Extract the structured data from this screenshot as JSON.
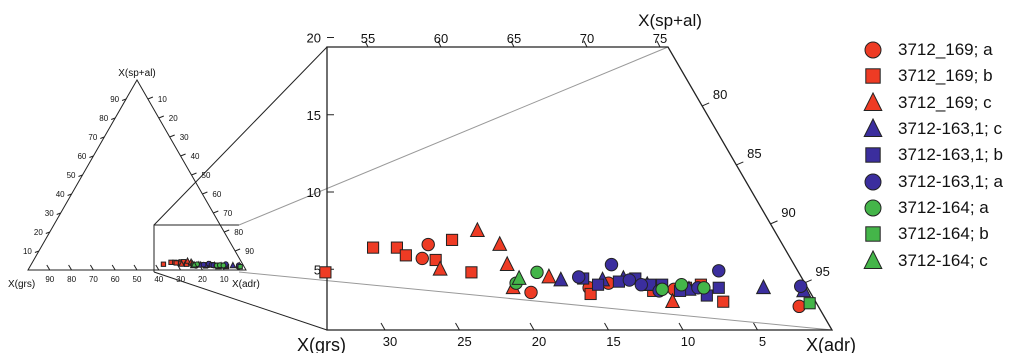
{
  "chart_data": {
    "type": "scatter",
    "subtype": "ternary-with-zoom-inset",
    "apices": {
      "top": "X(sp+al)",
      "left": "X(grs)",
      "right": "X(adr)"
    },
    "small_ternary": {
      "left_ticks": [
        "10",
        "20",
        "30",
        "40",
        "50",
        "60",
        "70",
        "80",
        "90"
      ],
      "right_ticks": [
        "10",
        "20",
        "30",
        "40",
        "50",
        "60",
        "70",
        "80",
        "90"
      ],
      "bottom_ticks": [
        "90",
        "80",
        "70",
        "60",
        "50",
        "40",
        "30",
        "20",
        "10"
      ]
    },
    "zoom": {
      "y_axis_ticks": [
        5,
        10,
        15,
        20
      ],
      "top_axis_label": "X(sp+al)",
      "top_ticks": [
        55,
        60,
        65,
        70,
        75
      ],
      "right_ticks": [
        80,
        85,
        90,
        95
      ],
      "bottom_ticks": [
        30,
        25,
        20,
        15,
        10,
        5
      ],
      "bottom_left_label": "X(grs)",
      "bottom_right_label": "X(adr)",
      "x_axis": "X(grs)",
      "y_axis": "X(sp+al)"
    },
    "legend_position": "right",
    "series": [
      {
        "name": "3712_169; a",
        "marker": "circle",
        "color": "#ee3b24",
        "points": [
          [
            27.1,
            6.6
          ],
          [
            27.5,
            5.7
          ],
          [
            20.2,
            3.5
          ],
          [
            16.3,
            3.8
          ],
          [
            15.0,
            4.1
          ],
          [
            10.6,
            3.7
          ],
          [
            2.2,
            2.6
          ]
        ]
      },
      {
        "name": "3712_169; b",
        "marker": "square",
        "color": "#ee3b24",
        "points": [
          [
            34.0,
            4.8
          ],
          [
            30.8,
            6.4
          ],
          [
            29.2,
            6.4
          ],
          [
            28.6,
            5.9
          ],
          [
            26.6,
            5.6
          ],
          [
            25.5,
            6.9
          ],
          [
            24.2,
            4.8
          ],
          [
            16.2,
            3.4
          ],
          [
            12.0,
            3.6
          ],
          [
            9.8,
            3.8
          ],
          [
            8.8,
            4.0
          ],
          [
            7.3,
            2.9
          ]
        ]
      },
      {
        "name": "3712_169; c",
        "marker": "triangle",
        "color": "#ee3b24",
        "points": [
          [
            26.3,
            5.0
          ],
          [
            23.8,
            7.5
          ],
          [
            22.3,
            6.6
          ],
          [
            21.8,
            5.3
          ],
          [
            21.4,
            3.8
          ],
          [
            19.0,
            4.5
          ],
          [
            10.7,
            2.9
          ]
        ]
      },
      {
        "name": "3712-163,1; c",
        "marker": "triangle",
        "color": "#3b2e9e",
        "points": [
          [
            18.2,
            4.3
          ],
          [
            15.4,
            4.3
          ],
          [
            14.0,
            4.4
          ],
          [
            12.4,
            4.0
          ],
          [
            9.6,
            3.7
          ],
          [
            4.6,
            3.8
          ],
          [
            1.9,
            3.6
          ]
        ]
      },
      {
        "name": "3712-163,1; b",
        "marker": "square",
        "color": "#3b2e9e",
        "points": [
          [
            16.7,
            4.4
          ],
          [
            15.7,
            4.0
          ],
          [
            14.3,
            4.2
          ],
          [
            13.2,
            4.4
          ],
          [
            12.2,
            4.0
          ],
          [
            11.4,
            4.0
          ],
          [
            10.2,
            3.6
          ],
          [
            8.4,
            3.3
          ],
          [
            7.6,
            3.8
          ]
        ]
      },
      {
        "name": "3712-163,1; a",
        "marker": "circle",
        "color": "#3b2e9e",
        "points": [
          [
            17.0,
            4.5
          ],
          [
            14.8,
            5.3
          ],
          [
            13.6,
            4.3
          ],
          [
            12.8,
            4.0
          ],
          [
            11.6,
            3.6
          ],
          [
            9.0,
            3.8
          ],
          [
            7.6,
            4.9
          ],
          [
            2.1,
            3.9
          ]
        ]
      },
      {
        "name": "3712-164; a",
        "marker": "circle",
        "color": "#44b549",
        "points": [
          [
            21.2,
            4.1
          ],
          [
            19.8,
            4.8
          ],
          [
            11.4,
            3.7
          ],
          [
            10.1,
            4.0
          ],
          [
            8.6,
            3.8
          ]
        ]
      },
      {
        "name": "3712-164; b",
        "marker": "square",
        "color": "#44b549",
        "points": [
          [
            1.5,
            2.8
          ]
        ]
      },
      {
        "name": "3712-164; c",
        "marker": "triangle",
        "color": "#44b549",
        "points": [
          [
            21.0,
            4.4
          ]
        ]
      }
    ]
  }
}
